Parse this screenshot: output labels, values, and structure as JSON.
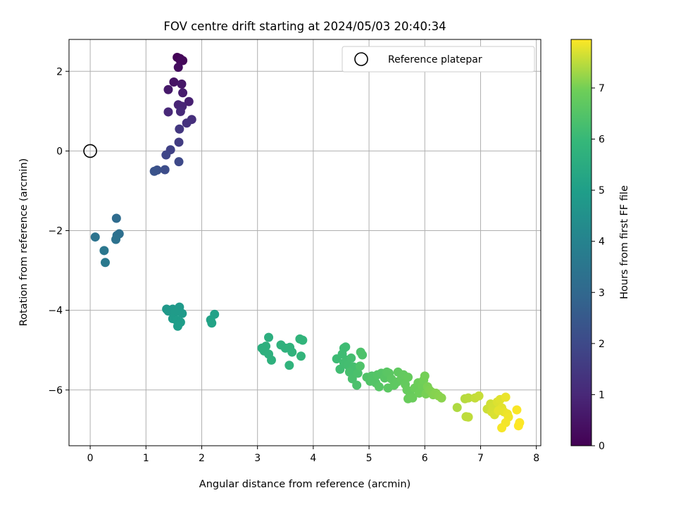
{
  "chart_data": {
    "type": "scatter",
    "title": "FOV centre drift starting at 2024/05/03 20:40:34",
    "xlabel": "Angular distance from reference (arcmin)",
    "ylabel": "Rotation from reference (arcmin)",
    "xlim": [
      -0.38,
      8.08
    ],
    "ylim": [
      -7.4,
      2.8
    ],
    "xticks": [
      0,
      1,
      2,
      3,
      4,
      5,
      6,
      7,
      8
    ],
    "yticks": [
      -6,
      -4,
      -2,
      0,
      2
    ],
    "grid": true,
    "legend": {
      "placement": "top-right",
      "entries": [
        "Reference platepar"
      ]
    },
    "colorbar": {
      "label": "Hours from first FF file",
      "min": 0,
      "max": 7.95,
      "ticks": [
        0,
        1,
        2,
        3,
        4,
        5,
        6,
        7
      ],
      "colormap": "viridis"
    },
    "reference_point": {
      "x": 0,
      "y": 0
    },
    "series": [
      {
        "values": [
          {
            "x": 1.56,
            "y": 2.35,
            "t": 0.05
          },
          {
            "x": 1.61,
            "y": 2.32,
            "t": 0.1
          },
          {
            "x": 1.66,
            "y": 2.27,
            "t": 0.15
          },
          {
            "x": 1.62,
            "y": 2.26,
            "t": 0.2
          },
          {
            "x": 1.58,
            "y": 2.1,
            "t": 0.3
          },
          {
            "x": 1.5,
            "y": 1.73,
            "t": 0.45
          },
          {
            "x": 1.64,
            "y": 1.68,
            "t": 0.55
          },
          {
            "x": 1.4,
            "y": 1.54,
            "t": 0.6
          },
          {
            "x": 1.66,
            "y": 1.46,
            "t": 0.7
          },
          {
            "x": 1.77,
            "y": 1.24,
            "t": 0.8
          },
          {
            "x": 1.58,
            "y": 1.16,
            "t": 0.9
          },
          {
            "x": 1.65,
            "y": 1.12,
            "t": 0.95
          },
          {
            "x": 1.4,
            "y": 0.98,
            "t": 1.0
          },
          {
            "x": 1.62,
            "y": 0.99,
            "t": 1.05
          },
          {
            "x": 1.82,
            "y": 0.79,
            "t": 1.2
          },
          {
            "x": 1.73,
            "y": 0.7,
            "t": 1.3
          },
          {
            "x": 1.6,
            "y": 0.55,
            "t": 1.45
          },
          {
            "x": 1.59,
            "y": 0.22,
            "t": 1.6
          },
          {
            "x": 1.44,
            "y": 0.03,
            "t": 1.75
          },
          {
            "x": 1.36,
            "y": -0.1,
            "t": 1.9
          },
          {
            "x": 1.59,
            "y": -0.27,
            "t": 2.0
          },
          {
            "x": 1.34,
            "y": -0.47,
            "t": 2.1
          },
          {
            "x": 1.2,
            "y": -0.48,
            "t": 2.2
          },
          {
            "x": 1.15,
            "y": -0.51,
            "t": 2.3
          },
          {
            "x": 0.47,
            "y": -1.69,
            "t": 3.15
          },
          {
            "x": 0.52,
            "y": -2.08,
            "t": 3.25
          },
          {
            "x": 0.48,
            "y": -2.12,
            "t": 3.3
          },
          {
            "x": 0.46,
            "y": -2.22,
            "t": 3.35
          },
          {
            "x": 0.09,
            "y": -2.16,
            "t": 3.4
          },
          {
            "x": 0.25,
            "y": -2.5,
            "t": 3.55
          },
          {
            "x": 0.27,
            "y": -2.8,
            "t": 3.65
          },
          {
            "x": 1.37,
            "y": -3.97,
            "t": 4.75
          },
          {
            "x": 1.4,
            "y": -4.02,
            "t": 4.78
          },
          {
            "x": 1.48,
            "y": -3.97,
            "t": 4.8
          },
          {
            "x": 1.6,
            "y": -3.92,
            "t": 4.83
          },
          {
            "x": 1.65,
            "y": -4.08,
            "t": 4.86
          },
          {
            "x": 1.52,
            "y": -4.05,
            "t": 4.88
          },
          {
            "x": 1.48,
            "y": -4.21,
            "t": 4.9
          },
          {
            "x": 1.55,
            "y": -4.25,
            "t": 4.92
          },
          {
            "x": 1.62,
            "y": -4.3,
            "t": 4.95
          },
          {
            "x": 1.57,
            "y": -4.4,
            "t": 4.97
          },
          {
            "x": 2.23,
            "y": -4.1,
            "t": 5.1
          },
          {
            "x": 2.16,
            "y": -4.24,
            "t": 5.12
          },
          {
            "x": 2.18,
            "y": -4.32,
            "t": 5.15
          },
          {
            "x": 3.2,
            "y": -4.68,
            "t": 5.6
          },
          {
            "x": 3.08,
            "y": -4.95,
            "t": 5.62
          },
          {
            "x": 3.15,
            "y": -4.9,
            "t": 5.64
          },
          {
            "x": 3.12,
            "y": -5.02,
            "t": 5.66
          },
          {
            "x": 3.2,
            "y": -5.1,
            "t": 5.68
          },
          {
            "x": 3.25,
            "y": -5.25,
            "t": 5.7
          },
          {
            "x": 3.42,
            "y": -4.87,
            "t": 5.72
          },
          {
            "x": 3.5,
            "y": -4.95,
            "t": 5.74
          },
          {
            "x": 3.58,
            "y": -4.93,
            "t": 5.76
          },
          {
            "x": 3.62,
            "y": -5.05,
            "t": 5.78
          },
          {
            "x": 3.57,
            "y": -5.38,
            "t": 5.8
          },
          {
            "x": 3.76,
            "y": -4.72,
            "t": 5.82
          },
          {
            "x": 3.81,
            "y": -4.75,
            "t": 5.84
          },
          {
            "x": 3.78,
            "y": -5.15,
            "t": 5.86
          },
          {
            "x": 4.42,
            "y": -5.22,
            "t": 6.1
          },
          {
            "x": 4.55,
            "y": -4.95,
            "t": 6.12
          },
          {
            "x": 4.58,
            "y": -4.92,
            "t": 6.13
          },
          {
            "x": 4.52,
            "y": -5.1,
            "t": 6.14
          },
          {
            "x": 4.6,
            "y": -5.25,
            "t": 6.16
          },
          {
            "x": 4.48,
            "y": -5.48,
            "t": 6.18
          },
          {
            "x": 4.55,
            "y": -5.32,
            "t": 6.2
          },
          {
            "x": 4.62,
            "y": -5.38,
            "t": 6.22
          },
          {
            "x": 4.68,
            "y": -5.2,
            "t": 6.24
          },
          {
            "x": 4.72,
            "y": -5.42,
            "t": 6.26
          },
          {
            "x": 4.75,
            "y": -5.48,
            "t": 6.28
          },
          {
            "x": 4.65,
            "y": -5.55,
            "t": 6.3
          },
          {
            "x": 4.7,
            "y": -5.72,
            "t": 6.32
          },
          {
            "x": 4.8,
            "y": -5.58,
            "t": 6.34
          },
          {
            "x": 4.78,
            "y": -5.88,
            "t": 6.36
          },
          {
            "x": 4.85,
            "y": -5.05,
            "t": 6.38
          },
          {
            "x": 4.88,
            "y": -5.12,
            "t": 6.4
          },
          {
            "x": 4.84,
            "y": -5.4,
            "t": 6.42
          },
          {
            "x": 4.96,
            "y": -5.68,
            "t": 6.44
          },
          {
            "x": 5.05,
            "y": -5.65,
            "t": 6.46
          },
          {
            "x": 5.02,
            "y": -5.78,
            "t": 6.48
          },
          {
            "x": 5.12,
            "y": -5.82,
            "t": 6.5
          },
          {
            "x": 5.15,
            "y": -5.62,
            "t": 6.52
          },
          {
            "x": 5.22,
            "y": -5.58,
            "t": 6.54
          },
          {
            "x": 5.18,
            "y": -5.92,
            "t": 6.56
          },
          {
            "x": 5.28,
            "y": -5.7,
            "t": 6.58
          },
          {
            "x": 5.32,
            "y": -5.55,
            "t": 6.6
          },
          {
            "x": 5.36,
            "y": -5.58,
            "t": 6.62
          },
          {
            "x": 5.34,
            "y": -5.95,
            "t": 6.64
          },
          {
            "x": 5.4,
            "y": -5.72,
            "t": 6.66
          },
          {
            "x": 5.45,
            "y": -5.88,
            "t": 6.68
          },
          {
            "x": 5.5,
            "y": -5.8,
            "t": 6.7
          },
          {
            "x": 5.52,
            "y": -5.55,
            "t": 6.72
          },
          {
            "x": 5.58,
            "y": -5.72,
            "t": 6.74
          },
          {
            "x": 5.62,
            "y": -5.62,
            "t": 6.76
          },
          {
            "x": 5.65,
            "y": -5.86,
            "t": 6.78
          },
          {
            "x": 5.7,
            "y": -5.68,
            "t": 6.8
          },
          {
            "x": 5.68,
            "y": -6.0,
            "t": 6.82
          },
          {
            "x": 5.74,
            "y": -6.12,
            "t": 6.84
          },
          {
            "x": 5.7,
            "y": -6.22,
            "t": 6.86
          },
          {
            "x": 5.78,
            "y": -6.2,
            "t": 6.88
          },
          {
            "x": 5.82,
            "y": -5.95,
            "t": 6.9
          },
          {
            "x": 5.88,
            "y": -5.82,
            "t": 6.92
          },
          {
            "x": 5.9,
            "y": -6.08,
            "t": 6.94
          },
          {
            "x": 5.95,
            "y": -5.9,
            "t": 6.96
          },
          {
            "x": 5.98,
            "y": -5.75,
            "t": 6.98
          },
          {
            "x": 6.0,
            "y": -5.65,
            "t": 7.0
          },
          {
            "x": 6.02,
            "y": -6.1,
            "t": 7.02
          },
          {
            "x": 6.05,
            "y": -5.92,
            "t": 7.04
          },
          {
            "x": 6.08,
            "y": -6.0,
            "t": 7.06
          },
          {
            "x": 6.12,
            "y": -6.05,
            "t": 7.08
          },
          {
            "x": 6.15,
            "y": -6.12,
            "t": 7.1
          },
          {
            "x": 6.2,
            "y": -6.08,
            "t": 7.12
          },
          {
            "x": 6.25,
            "y": -6.15,
            "t": 7.14
          },
          {
            "x": 6.3,
            "y": -6.2,
            "t": 7.16
          },
          {
            "x": 6.58,
            "y": -6.44,
            "t": 7.4
          },
          {
            "x": 6.72,
            "y": -6.22,
            "t": 7.45
          },
          {
            "x": 6.78,
            "y": -6.2,
            "t": 7.48
          },
          {
            "x": 6.74,
            "y": -6.67,
            "t": 7.5
          },
          {
            "x": 6.78,
            "y": -6.68,
            "t": 7.52
          },
          {
            "x": 6.9,
            "y": -6.2,
            "t": 7.55
          },
          {
            "x": 6.97,
            "y": -6.15,
            "t": 7.57
          },
          {
            "x": 7.12,
            "y": -6.48,
            "t": 7.6
          },
          {
            "x": 7.18,
            "y": -6.35,
            "t": 7.63
          },
          {
            "x": 7.22,
            "y": -6.42,
            "t": 7.66
          },
          {
            "x": 7.2,
            "y": -6.55,
            "t": 7.68
          },
          {
            "x": 7.25,
            "y": -6.62,
            "t": 7.7
          },
          {
            "x": 7.3,
            "y": -6.3,
            "t": 7.72
          },
          {
            "x": 7.35,
            "y": -6.24,
            "t": 7.74
          },
          {
            "x": 7.38,
            "y": -6.45,
            "t": 7.76
          },
          {
            "x": 7.32,
            "y": -6.52,
            "t": 7.78
          },
          {
            "x": 7.42,
            "y": -6.55,
            "t": 7.8
          },
          {
            "x": 7.45,
            "y": -6.18,
            "t": 7.82
          },
          {
            "x": 7.48,
            "y": -6.6,
            "t": 7.84
          },
          {
            "x": 7.5,
            "y": -6.68,
            "t": 7.86
          },
          {
            "x": 7.45,
            "y": -6.82,
            "t": 7.88
          },
          {
            "x": 7.38,
            "y": -6.95,
            "t": 7.9
          },
          {
            "x": 7.65,
            "y": -6.5,
            "t": 7.92
          },
          {
            "x": 7.7,
            "y": -6.82,
            "t": 7.94
          },
          {
            "x": 7.68,
            "y": -6.9,
            "t": 7.95
          }
        ]
      }
    ]
  }
}
